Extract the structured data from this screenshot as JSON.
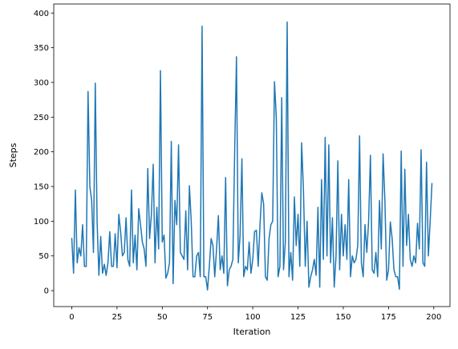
{
  "chart_data": {
    "type": "line",
    "x_label": "Iteration",
    "y_label": "Steps",
    "x": [
      0,
      1,
      2,
      3,
      4,
      5,
      6,
      7,
      8,
      9,
      10,
      11,
      12,
      13,
      14,
      15,
      16,
      17,
      18,
      19,
      20,
      21,
      22,
      23,
      24,
      25,
      26,
      27,
      28,
      29,
      30,
      31,
      32,
      33,
      34,
      35,
      36,
      37,
      38,
      39,
      40,
      41,
      42,
      43,
      44,
      45,
      46,
      47,
      48,
      49,
      50,
      51,
      52,
      53,
      54,
      55,
      56,
      57,
      58,
      59,
      60,
      61,
      62,
      63,
      64,
      65,
      66,
      67,
      68,
      69,
      70,
      71,
      72,
      73,
      74,
      75,
      76,
      77,
      78,
      79,
      80,
      81,
      82,
      83,
      84,
      85,
      86,
      87,
      88,
      89,
      90,
      91,
      92,
      93,
      94,
      95,
      96,
      97,
      98,
      99,
      100,
      101,
      102,
      103,
      104,
      105,
      106,
      107,
      108,
      109,
      110,
      111,
      112,
      113,
      114,
      115,
      116,
      117,
      118,
      119,
      120,
      121,
      122,
      123,
      124,
      125,
      126,
      127,
      128,
      129,
      130,
      131,
      132,
      133,
      134,
      135,
      136,
      137,
      138,
      139,
      140,
      141,
      142,
      143,
      144,
      145,
      146,
      147,
      148,
      149,
      150,
      151,
      152,
      153,
      154,
      155,
      156,
      157,
      158,
      159,
      160,
      161,
      162,
      163,
      164,
      165,
      166,
      167,
      168,
      169,
      170,
      171,
      172,
      173,
      174,
      175,
      176,
      177,
      178,
      179,
      180,
      181,
      182,
      183,
      184,
      185,
      186,
      187,
      188,
      189,
      190,
      191,
      192,
      193,
      194,
      195,
      196,
      197,
      198,
      199
    ],
    "series": [
      {
        "color": "#1f77b4",
        "values": [
          76,
          25,
          145,
          40,
          62,
          50,
          95,
          35,
          35,
          287,
          150,
          130,
          55,
          299,
          100,
          22,
          78,
          25,
          38,
          22,
          40,
          85,
          35,
          35,
          82,
          33,
          110,
          85,
          50,
          55,
          105,
          45,
          35,
          145,
          40,
          80,
          30,
          118,
          95,
          70,
          60,
          35,
          176,
          75,
          110,
          182,
          40,
          120,
          60,
          317,
          70,
          80,
          18,
          25,
          40,
          215,
          10,
          130,
          95,
          210,
          55,
          50,
          45,
          115,
          30,
          151,
          100,
          20,
          20,
          50,
          55,
          20,
          381,
          20,
          20,
          1,
          35,
          75,
          65,
          20,
          60,
          108,
          30,
          50,
          25,
          163,
          7,
          30,
          35,
          45,
          200,
          337,
          40,
          80,
          190,
          20,
          35,
          30,
          70,
          25,
          45,
          85,
          87,
          35,
          95,
          141,
          125,
          20,
          15,
          75,
          95,
          100,
          301,
          250,
          20,
          35,
          278,
          30,
          70,
          387,
          20,
          55,
          15,
          135,
          65,
          110,
          35,
          213,
          145,
          35,
          100,
          5,
          20,
          30,
          45,
          22,
          120,
          5,
          160,
          45,
          221,
          50,
          210,
          40,
          105,
          5,
          50,
          187,
          30,
          110,
          50,
          95,
          45,
          160,
          20,
          50,
          40,
          45,
          65,
          223,
          40,
          20,
          95,
          55,
          100,
          195,
          30,
          25,
          55,
          20,
          130,
          60,
          197,
          130,
          15,
          30,
          99,
          75,
          30,
          20,
          20,
          2,
          201,
          35,
          175,
          65,
          110,
          45,
          35,
          50,
          40,
          97,
          60,
          203,
          40,
          35,
          185,
          50,
          100,
          155
        ]
      }
    ],
    "xlim": [
      -9.95,
      208.95
    ],
    "ylim": [
      -23,
      413
    ],
    "xticks": [
      0,
      25,
      50,
      75,
      100,
      125,
      150,
      175,
      200
    ],
    "yticks": [
      0,
      50,
      100,
      150,
      200,
      250,
      300,
      350,
      400
    ]
  }
}
